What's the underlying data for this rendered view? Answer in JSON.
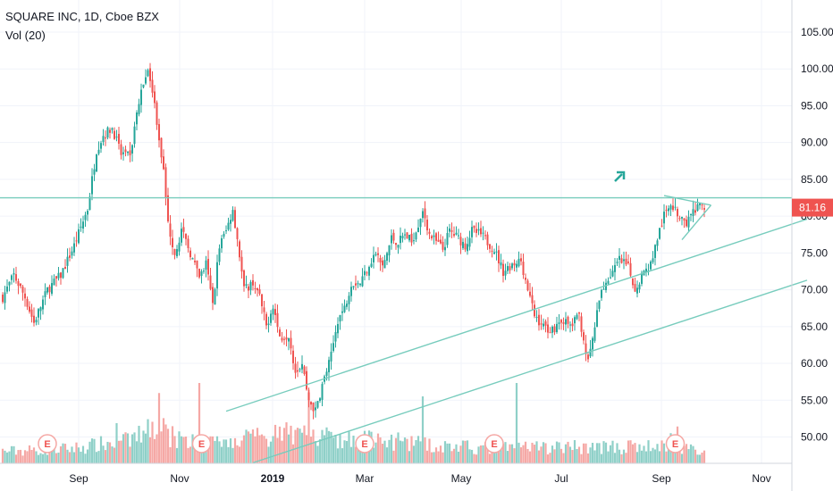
{
  "header": {
    "title": "SQUARE INC, 1D, Cboe BZX",
    "volume_label": "Vol (20)"
  },
  "colors": {
    "up": "#26a69a",
    "down": "#ef5350",
    "up_vol": "#8fd0c8",
    "down_vol": "#f5a8a5",
    "line": "#77ccbd",
    "grid": "#f0f3fa",
    "tag": "#ef5350"
  },
  "current_price": "81.16",
  "earnings_marker_label": "E",
  "chart_data": {
    "type": "candlestick",
    "title": "SQUARE INC, 1D, Cboe BZX",
    "ylim": [
      46.5,
      110
    ],
    "y_ticks": [
      "105.00",
      "100.00",
      "95.00",
      "90.00",
      "85.00",
      "80.00",
      "75.00",
      "70.00",
      "65.00",
      "60.00",
      "55.00",
      "50.00"
    ],
    "x_ticks": [
      "Sep",
      "Nov",
      "2019",
      "Mar",
      "May",
      "Jul",
      "Sep",
      "Nov"
    ],
    "price_anchors": [
      [
        0,
        69
      ],
      [
        5,
        72
      ],
      [
        10,
        69
      ],
      [
        14,
        65.5
      ],
      [
        20,
        70
      ],
      [
        26,
        72
      ],
      [
        32,
        76
      ],
      [
        38,
        81
      ],
      [
        42,
        89
      ],
      [
        45,
        91
      ],
      [
        49,
        92
      ],
      [
        53,
        88.5
      ],
      [
        57,
        88
      ],
      [
        60,
        94
      ],
      [
        64,
        99.5
      ],
      [
        66,
        99
      ],
      [
        69,
        93
      ],
      [
        72,
        86
      ],
      [
        74,
        79
      ],
      [
        77,
        75
      ],
      [
        80,
        78
      ],
      [
        84,
        75
      ],
      [
        88,
        71.5
      ],
      [
        91,
        73.5
      ],
      [
        94,
        68
      ],
      [
        97,
        76
      ],
      [
        100,
        78
      ],
      [
        103,
        81
      ],
      [
        105,
        77
      ],
      [
        108,
        70
      ],
      [
        112,
        71
      ],
      [
        115,
        69
      ],
      [
        118,
        65
      ],
      [
        121,
        68
      ],
      [
        124,
        63.5
      ],
      [
        128,
        64
      ],
      [
        131,
        59
      ],
      [
        134,
        60
      ],
      [
        137,
        55
      ],
      [
        140,
        53.5
      ],
      [
        143,
        57
      ],
      [
        147,
        61
      ],
      [
        150,
        66
      ],
      [
        153,
        67.5
      ],
      [
        156,
        71
      ],
      [
        160,
        71
      ],
      [
        164,
        73.5
      ],
      [
        167,
        75
      ],
      [
        170,
        73
      ],
      [
        174,
        77
      ],
      [
        177,
        76.5
      ],
      [
        180,
        77.5
      ],
      [
        183,
        76.5
      ],
      [
        186,
        79
      ],
      [
        188,
        81
      ],
      [
        191,
        77.5
      ],
      [
        194,
        76.5
      ],
      [
        197,
        75.5
      ],
      [
        200,
        78
      ],
      [
        204,
        77
      ],
      [
        207,
        76
      ],
      [
        210,
        78
      ],
      [
        214,
        77.5
      ],
      [
        217,
        76.5
      ],
      [
        220,
        75.5
      ],
      [
        224,
        72.5
      ],
      [
        228,
        73.5
      ],
      [
        232,
        74
      ],
      [
        235,
        70
      ],
      [
        238,
        66.5
      ],
      [
        242,
        65
      ],
      [
        246,
        64.5
      ],
      [
        250,
        66
      ],
      [
        254,
        65
      ],
      [
        258,
        66.5
      ],
      [
        262,
        60
      ],
      [
        265,
        65
      ],
      [
        268,
        70
      ],
      [
        272,
        72
      ],
      [
        276,
        74
      ],
      [
        280,
        73
      ],
      [
        283,
        70
      ],
      [
        286,
        72
      ],
      [
        290,
        73.5
      ],
      [
        293,
        77
      ],
      [
        296,
        80
      ],
      [
        299,
        82
      ],
      [
        302,
        80
      ],
      [
        306,
        79
      ],
      [
        309,
        80.5
      ],
      [
        312,
        81.2
      ],
      [
        314,
        81.16
      ]
    ],
    "volume_anchors": [
      [
        0,
        1.8
      ],
      [
        30,
        2.2
      ],
      [
        60,
        3.5
      ],
      [
        64,
        6
      ],
      [
        70,
        5.5
      ],
      [
        75,
        4
      ],
      [
        90,
        3
      ],
      [
        110,
        3.5
      ],
      [
        130,
        4.5
      ],
      [
        145,
        4
      ],
      [
        160,
        3.5
      ],
      [
        180,
        3.2
      ],
      [
        200,
        2.5
      ],
      [
        220,
        2.2
      ],
      [
        240,
        2.3
      ],
      [
        260,
        2.5
      ],
      [
        280,
        2.4
      ],
      [
        300,
        2.6
      ],
      [
        314,
        1.5
      ]
    ],
    "volume_spikes": [
      [
        51,
        6
      ],
      [
        70,
        10.5
      ],
      [
        88,
        12
      ],
      [
        137,
        11
      ],
      [
        188,
        10
      ],
      [
        230,
        12
      ],
      [
        299,
        4.5
      ],
      [
        302,
        5.5
      ]
    ],
    "resistance_level": 82.5,
    "trendlines": [
      {
        "name": "upper-channel",
        "points": [
          [
            100,
            53.5
          ],
          [
            360,
            79.6
          ]
        ]
      },
      {
        "name": "lower-channel",
        "points": [
          [
            112,
            46.5
          ],
          [
            360,
            71.3
          ]
        ]
      },
      {
        "name": "triangle-lower",
        "points": [
          [
            304,
            76.8
          ],
          [
            317,
            81.5
          ]
        ]
      },
      {
        "name": "triangle-upper",
        "points": [
          [
            296,
            82.8
          ],
          [
            317,
            81.5
          ]
        ]
      }
    ],
    "earnings_indices": [
      12,
      81,
      154,
      212,
      293
    ],
    "total_bars": 315
  }
}
